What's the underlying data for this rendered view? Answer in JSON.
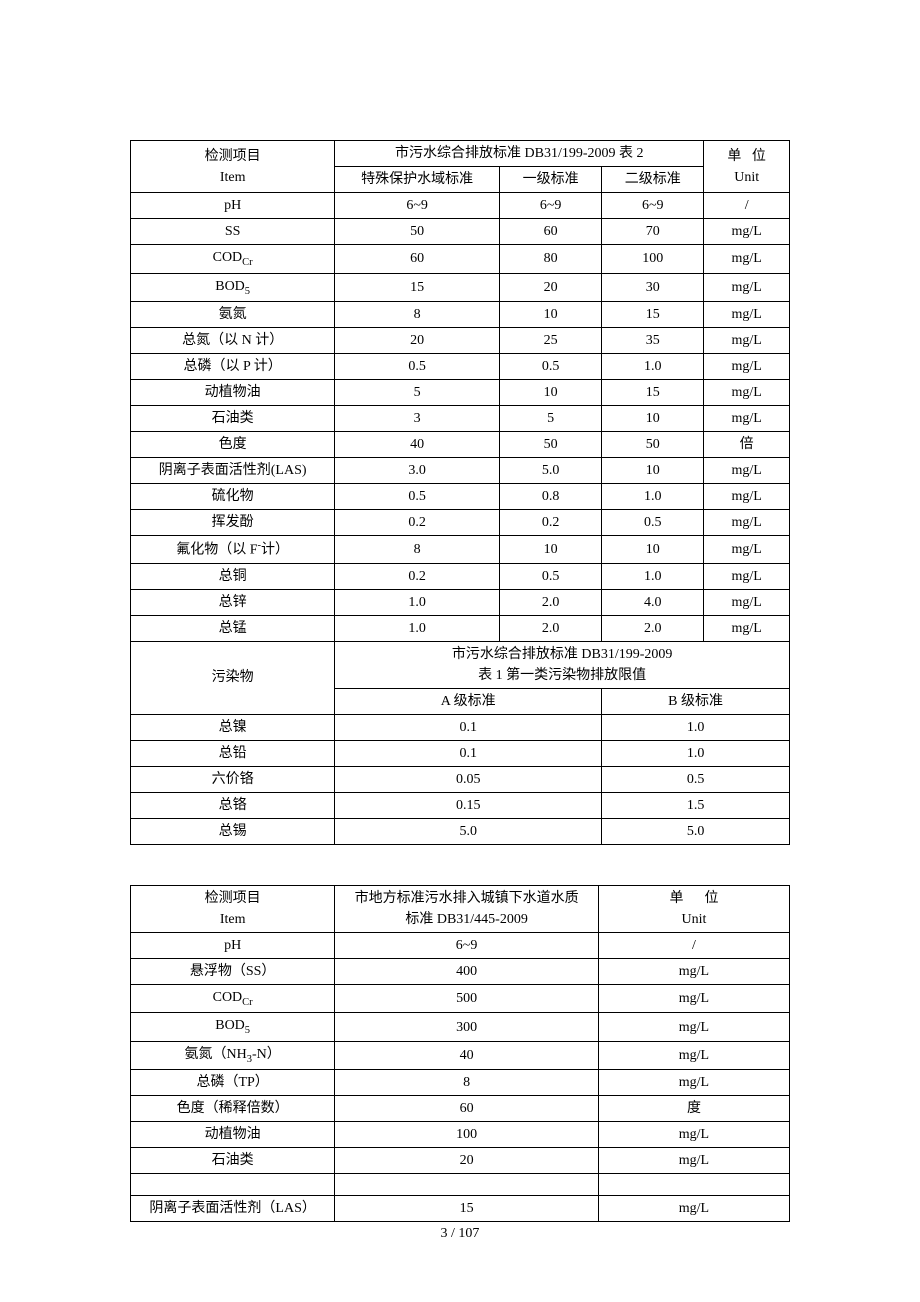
{
  "table1": {
    "header": {
      "item_line1": "检测项目",
      "item_line2": "Item",
      "std_title": "市污水综合排放标准 DB31/199-2009 表 2",
      "sub1": "特殊保护水域标准",
      "sub2": "一级标准",
      "sub3": "二级标准",
      "unit_line1": "单",
      "unit_line1b": "位",
      "unit_line2": "Unit"
    },
    "rows": [
      {
        "item": "pH",
        "v1": "6~9",
        "v2": "6~9",
        "v3": "6~9",
        "unit": "/"
      },
      {
        "item": "SS",
        "v1": "50",
        "v2": "60",
        "v3": "70",
        "unit": "mg/L"
      },
      {
        "item_html": "COD<sub>Cr</sub>",
        "v1": "60",
        "v2": "80",
        "v3": "100",
        "unit": "mg/L"
      },
      {
        "item_html": "BOD<sub>5</sub>",
        "v1": "15",
        "v2": "20",
        "v3": "30",
        "unit": "mg/L"
      },
      {
        "item": "氨氮",
        "v1": "8",
        "v2": "10",
        "v3": "15",
        "unit": "mg/L"
      },
      {
        "item": "总氮（以 N 计）",
        "v1": "20",
        "v2": "25",
        "v3": "35",
        "unit": "mg/L"
      },
      {
        "item": "总磷（以 P 计）",
        "v1": "0.5",
        "v2": "0.5",
        "v3": "1.0",
        "unit": "mg/L"
      },
      {
        "item": "动植物油",
        "v1": "5",
        "v2": "10",
        "v3": "15",
        "unit": "mg/L"
      },
      {
        "item": "石油类",
        "v1": "3",
        "v2": "5",
        "v3": "10",
        "unit": "mg/L"
      },
      {
        "item": "色度",
        "v1": "40",
        "v2": "50",
        "v3": "50",
        "unit": "倍"
      },
      {
        "item": "阴离子表面活性剂(LAS)",
        "v1": "3.0",
        "v2": "5.0",
        "v3": "10",
        "unit": "mg/L"
      },
      {
        "item": "硫化物",
        "v1": "0.5",
        "v2": "0.8",
        "v3": "1.0",
        "unit": "mg/L"
      },
      {
        "item": "挥发酚",
        "v1": "0.2",
        "v2": "0.2",
        "v3": "0.5",
        "unit": "mg/L"
      },
      {
        "item_html": "氟化物（以 F<sup>-</sup>计）",
        "v1": "8",
        "v2": "10",
        "v3": "10",
        "unit": "mg/L"
      },
      {
        "item": "总铜",
        "v1": "0.2",
        "v2": "0.5",
        "v3": "1.0",
        "unit": "mg/L"
      },
      {
        "item": "总锌",
        "v1": "1.0",
        "v2": "2.0",
        "v3": "4.0",
        "unit": "mg/L"
      },
      {
        "item": "总锰",
        "v1": "1.0",
        "v2": "2.0",
        "v3": "2.0",
        "unit": "mg/L"
      }
    ],
    "section2": {
      "pollutant_label": "污染物",
      "title_line1": "市污水综合排放标准 DB31/199-2009",
      "title_line2": "表 1 第一类污染物排放限值",
      "col_a": "A 级标准",
      "col_b": "B 级标准",
      "rows": [
        {
          "item": "总镍",
          "a": "0.1",
          "b": "1.0"
        },
        {
          "item": "总铅",
          "a": "0.1",
          "b": "1.0"
        },
        {
          "item": "六价铬",
          "a": "0.05",
          "b": "0.5"
        },
        {
          "item": "总铬",
          "a": "0.15",
          "b": "1.5"
        },
        {
          "item": "总锡",
          "a": "5.0",
          "b": "5.0"
        }
      ]
    }
  },
  "table2": {
    "header": {
      "item_line1": "检测项目",
      "item_line2": "Item",
      "std_line1": "市地方标准污水排入城镇下水道水质",
      "std_line2": "标准 DB31/445-2009",
      "unit_line1": "单",
      "unit_line1b": "位",
      "unit_line2": "Unit"
    },
    "rows": [
      {
        "item": "pH",
        "v": "6~9",
        "unit": "/"
      },
      {
        "item": "悬浮物（SS）",
        "v": "400",
        "unit": "mg/L"
      },
      {
        "item_html": "COD<sub>Cr</sub>",
        "v": "500",
        "unit": "mg/L"
      },
      {
        "item_html": "BOD<sub>5</sub>",
        "v": "300",
        "unit": "mg/L"
      },
      {
        "item_html": "氨氮（NH<sub>3</sub>-N）",
        "v": "40",
        "unit": "mg/L"
      },
      {
        "item": "总磷（TP）",
        "v": "8",
        "unit": "mg/L"
      },
      {
        "item": "色度（稀释倍数）",
        "v": "60",
        "unit": "度"
      },
      {
        "item": "动植物油",
        "v": "100",
        "unit": "mg/L"
      },
      {
        "item": "石油类",
        "v": "20",
        "unit": "mg/L"
      }
    ],
    "last_row": {
      "item": "阴离子表面活性剂（LAS）",
      "v": "15",
      "unit": "mg/L"
    }
  },
  "footer": "3 / 107"
}
